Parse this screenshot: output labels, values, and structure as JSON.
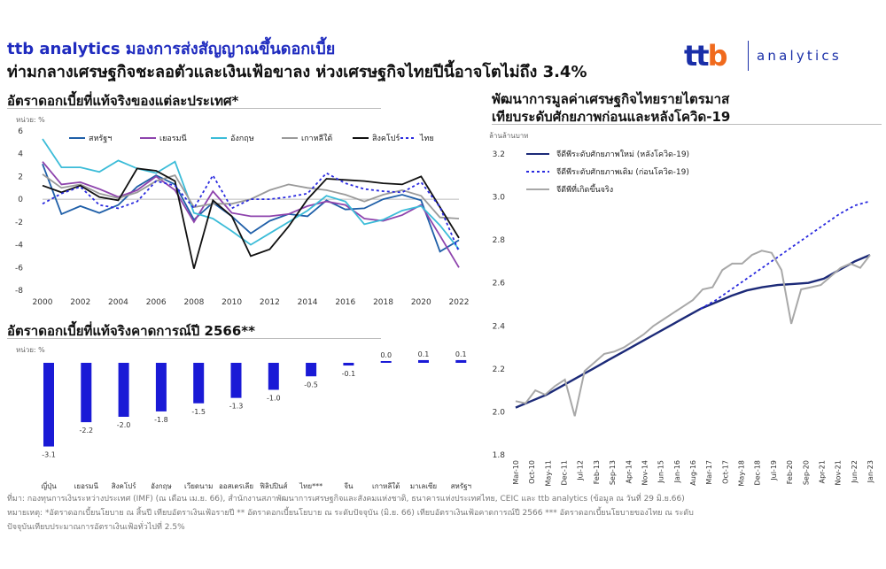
{
  "header": {
    "line1": "ttb analytics มองการส่งสัญญาณขึ้นดอกเบี้ย",
    "line2": "ท่ามกลางเศรษฐกิจชะลอตัวและเงินเฟ้อขาลง ห่วงเศรษฐกิจไทยปีนี้อาจโตไม่ถึง 3.4%"
  },
  "logo": {
    "mark": "ttb",
    "word": "analytics"
  },
  "footnotes": {
    "line1": "ที่มา: กองทุนการเงินระหว่างประเทศ (IMF) (ณ เดือน เม.ย. 66), สำนักงานสภาพัฒนาการเศรษฐกิจและสังคมแห่งชาติ, ธนาคารแห่งประเทศไทย, CEIC และ ttb analytics (ข้อมูล ณ วันที่ 29 มิ.ย.66)",
    "line2": "หมายเหตุ: *อัตราดอกเบี้ยนโยบาย ณ สิ้นปี เทียบอัตราเงินเฟ้อรายปี  ** อัตราดอกเบี้ยนโยบาย ณ ระดับปัจจุบัน (มิ.ย. 66) เทียบอัตราเงินเฟ้อคาดการณ์ปี 2566 *** อัตราดอกเบี้ยนโยบายของไทย ณ ระดับ",
    "line3": "ปัจจุบันเทียบประมาณการอัตราเงินเฟ้อทั่วไปที่ 2.5%"
  },
  "chart_data": [
    {
      "type": "line",
      "title": "อัตราดอกเบี้ยที่แท้จริงของแต่ละประเทศ*",
      "ylabel": "หน่วย: %",
      "ylim": [
        -8,
        6
      ],
      "yticks": [
        6,
        4,
        2,
        0,
        -2,
        -4,
        -6,
        -8
      ],
      "xticks": [
        "2000",
        "2002",
        "2004",
        "2006",
        "2008",
        "2010",
        "2012",
        "2014",
        "2016",
        "2018",
        "2020",
        "2022"
      ],
      "x": [
        2000,
        2001,
        2002,
        2003,
        2004,
        2005,
        2006,
        2007,
        2008,
        2009,
        2010,
        2011,
        2012,
        2013,
        2014,
        2015,
        2016,
        2017,
        2018,
        2019,
        2020,
        2021,
        2022
      ],
      "legend_position": "top",
      "series": [
        {
          "name": "สหรัฐฯ",
          "color": "#1f5fa8",
          "dash": "",
          "values": [
            3.1,
            -1.3,
            -0.6,
            -1.2,
            -0.5,
            1.1,
            2.1,
            1.3,
            -1.8,
            -0.3,
            -1.5,
            -3.0,
            -1.9,
            -1.3,
            -1.5,
            -0.1,
            -0.9,
            -0.8,
            0.0,
            0.4,
            -0.1,
            -4.6,
            -3.6
          ]
        },
        {
          "name": "เยอรมนี",
          "color": "#8e44ad",
          "dash": "",
          "values": [
            3.3,
            1.3,
            1.5,
            0.9,
            0.2,
            0.8,
            2.0,
            0.8,
            -2.0,
            0.7,
            -1.2,
            -1.5,
            -1.5,
            -1.3,
            -0.6,
            -0.2,
            -0.5,
            -1.7,
            -1.9,
            -1.4,
            -0.5,
            -3.2,
            -6.0
          ]
        },
        {
          "name": "อังกฤษ",
          "color": "#3bbcd8",
          "dash": "",
          "values": [
            5.3,
            2.8,
            2.8,
            2.4,
            3.4,
            2.7,
            2.3,
            3.3,
            -1.2,
            -1.7,
            -2.8,
            -4.0,
            -3.0,
            -2.0,
            -1.0,
            0.3,
            -0.2,
            -2.2,
            -1.8,
            -1.0,
            -0.6,
            -2.3,
            -4.4
          ]
        },
        {
          "name": "เกาหลีใต้",
          "color": "#9a9a9a",
          "dash": "",
          "values": [
            2.2,
            1.0,
            1.3,
            0.5,
            0.1,
            0.6,
            1.6,
            2.1,
            -0.7,
            -0.4,
            -0.4,
            0.0,
            0.8,
            1.3,
            1.0,
            0.8,
            0.4,
            -0.2,
            0.4,
            0.8,
            0.3,
            -1.6,
            -1.7
          ]
        },
        {
          "name": "สิงคโปร์",
          "color": "#111111",
          "dash": "",
          "values": [
            1.2,
            0.6,
            1.2,
            0.2,
            -0.1,
            2.7,
            2.5,
            1.6,
            -6.1,
            -0.1,
            -1.5,
            -5.0,
            -4.4,
            -2.4,
            0.0,
            1.8,
            1.7,
            1.6,
            1.4,
            1.3,
            2.0,
            -0.7,
            -3.4
          ]
        },
        {
          "name": "ไทย",
          "color": "#2a2adf",
          "dash": "3,3",
          "values": [
            -0.4,
            0.5,
            1.1,
            -0.5,
            -0.8,
            -0.2,
            1.6,
            1.2,
            -0.8,
            2.1,
            -0.8,
            0.0,
            0.0,
            0.2,
            0.5,
            2.3,
            1.4,
            0.9,
            0.7,
            0.6,
            1.5,
            -0.7,
            -4.6
          ]
        }
      ]
    },
    {
      "type": "bar",
      "title": "อัตราดอกเบี้ยที่แท้จริงคาดการณ์ปี 2566**",
      "ylabel": "หน่วย: %",
      "categories": [
        "ญี่ปุ่น",
        "เยอรมนี",
        "สิงคโปร์",
        "อังกฤษ",
        "เวียดนาม",
        "ออสเตรเลีย",
        "ฟิลิปปินส์",
        "ไทย***",
        "จีน",
        "เกาหลีใต้",
        "มาเลเซีย",
        "สหรัฐฯ"
      ],
      "values": [
        -3.1,
        -2.2,
        -2.0,
        -1.8,
        -1.5,
        -1.3,
        -1.0,
        -0.5,
        -0.1,
        0.0,
        0.1,
        0.1
      ],
      "labels": [
        "-3.1",
        "-2.2",
        "-2.0",
        "-1.8",
        "-1.5",
        "-1.3",
        "-1.0",
        "-0.5",
        "-0.1",
        "0.0",
        "0.1",
        "0.1"
      ],
      "color": "#1a1ad6"
    },
    {
      "type": "line",
      "title": "พัฒนาการมูลค่าเศรษฐกิจไทยรายไตรมาส",
      "subtitle": "เทียบระดับศักยภาพก่อนและหลังโควิด-19",
      "ylabel": "ล้านล้านบาท",
      "ylim": [
        1.8,
        3.2
      ],
      "yticks": [
        3.2,
        3.0,
        2.8,
        2.6,
        2.4,
        2.2,
        2.0,
        1.8
      ],
      "xticks": [
        "Mar-10",
        "Oct-10",
        "May-11",
        "Dec-11",
        "Jul-12",
        "Feb-13",
        "Sep-13",
        "Apr-14",
        "Nov-14",
        "Jun-15",
        "Jan-16",
        "Aug-16",
        "Mar-17",
        "Oct-17",
        "May-18",
        "Dec-18",
        "Jul-19",
        "Feb-20",
        "Sep-20",
        "Apr-21",
        "Nov-21",
        "Jun-22",
        "Jan-23"
      ],
      "legend_position": "top-left",
      "series": [
        {
          "name": "จีดีพีระดับศักยภาพใหม่ (หลังโควิด-19)",
          "color": "#1c2a78",
          "dash": "",
          "width": 2.4,
          "values": [
            2.02,
            2.05,
            2.08,
            2.12,
            2.16,
            2.2,
            2.24,
            2.28,
            2.32,
            2.36,
            2.4,
            2.44,
            2.48,
            2.51,
            2.54,
            2.565,
            2.58,
            2.59,
            2.595,
            2.6,
            2.62,
            2.66,
            2.7,
            2.73
          ]
        },
        {
          "name": "จีดีพีระดับศักยภาพเดิม (ก่อนโควิด-19)",
          "color": "#2a2adf",
          "dash": "3,3",
          "width": 1.8,
          "values": [
            null,
            null,
            null,
            null,
            null,
            null,
            null,
            null,
            null,
            null,
            null,
            null,
            2.48,
            2.52,
            2.57,
            2.62,
            2.67,
            2.72,
            2.77,
            2.82,
            2.87,
            2.92,
            2.96,
            2.98
          ]
        },
        {
          "name": "จีดีพีที่เกิดขึ้นจริง",
          "color": "#a8a8a8",
          "dash": "",
          "width": 2.0,
          "values": [
            2.05,
            2.04,
            2.1,
            2.08,
            2.12,
            2.15,
            1.98,
            2.19,
            2.23,
            2.27,
            2.28,
            2.3,
            2.33,
            2.36,
            2.4,
            2.43,
            2.46,
            2.49,
            2.52,
            2.57,
            2.58,
            2.66,
            2.69,
            2.69,
            2.73,
            2.75,
            2.74,
            2.66,
            2.41,
            2.57,
            2.58,
            2.59,
            2.63,
            2.67,
            2.69,
            2.67,
            2.73
          ]
        }
      ]
    }
  ]
}
